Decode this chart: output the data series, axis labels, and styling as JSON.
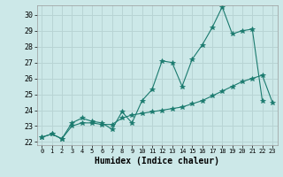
{
  "xlabel": "Humidex (Indice chaleur)",
  "bg_color": "#cce8e8",
  "grid_color": "#b8d4d4",
  "line_color": "#1a7a6e",
  "xlim": [
    -0.5,
    23.5
  ],
  "ylim": [
    21.8,
    30.6
  ],
  "yticks": [
    22,
    23,
    24,
    25,
    26,
    27,
    28,
    29,
    30
  ],
  "xticks": [
    0,
    1,
    2,
    3,
    4,
    5,
    6,
    7,
    8,
    9,
    10,
    11,
    12,
    13,
    14,
    15,
    16,
    17,
    18,
    19,
    20,
    21,
    22,
    23
  ],
  "series1_x": [
    0,
    1,
    2,
    3,
    4,
    5,
    6,
    7,
    8,
    9,
    10,
    11,
    12,
    13,
    14,
    15,
    16,
    17,
    18,
    19,
    20,
    21,
    22
  ],
  "series1_y": [
    22.3,
    22.5,
    22.2,
    23.2,
    23.5,
    23.3,
    23.2,
    22.8,
    23.9,
    23.2,
    24.6,
    25.3,
    27.1,
    27.0,
    25.5,
    27.2,
    28.1,
    29.2,
    30.5,
    28.8,
    29.0,
    29.1,
    24.6
  ],
  "series2_x": [
    0,
    1,
    2,
    3,
    4,
    5,
    6,
    7,
    8,
    9,
    10,
    11,
    12,
    13,
    14,
    15,
    16,
    17,
    18,
    19,
    20,
    21,
    22,
    23
  ],
  "series2_y": [
    22.3,
    22.5,
    22.2,
    23.0,
    23.2,
    23.2,
    23.1,
    23.1,
    23.5,
    23.7,
    23.8,
    23.9,
    24.0,
    24.1,
    24.2,
    24.4,
    24.6,
    24.9,
    25.2,
    25.5,
    25.8,
    26.0,
    26.2,
    24.5
  ]
}
